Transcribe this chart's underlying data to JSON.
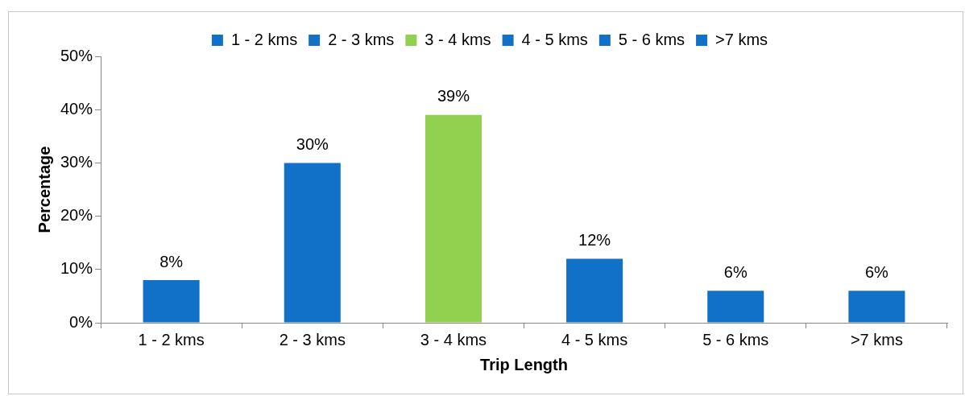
{
  "chart_data": {
    "type": "bar",
    "xlabel": "Trip Length",
    "ylabel": "Percentage",
    "categories": [
      "1 - 2 kms",
      "2 - 3 kms",
      "3 - 4 kms",
      "4 - 5 kms",
      "5 - 6 kms",
      ">7 kms"
    ],
    "series": [
      {
        "name": "1 - 2 kms",
        "color": "#1170c8",
        "values": [
          8,
          null,
          null,
          null,
          null,
          null
        ],
        "value_labels": [
          "8%",
          null,
          null,
          null,
          null,
          null
        ]
      },
      {
        "name": "2 - 3 kms",
        "color": "#1170c8",
        "values": [
          null,
          30,
          null,
          null,
          null,
          null
        ],
        "value_labels": [
          null,
          "30%",
          null,
          null,
          null,
          null
        ]
      },
      {
        "name": "3 - 4 kms",
        "color": "#92d050",
        "values": [
          null,
          null,
          39,
          null,
          null,
          null
        ],
        "value_labels": [
          null,
          null,
          "39%",
          null,
          null,
          null
        ]
      },
      {
        "name": "4 - 5 kms",
        "color": "#1170c8",
        "values": [
          null,
          null,
          null,
          12,
          null,
          null
        ],
        "value_labels": [
          null,
          null,
          null,
          "12%",
          null,
          null
        ]
      },
      {
        "name": "5 - 6 kms",
        "color": "#1170c8",
        "values": [
          null,
          null,
          null,
          null,
          6,
          null
        ],
        "value_labels": [
          null,
          null,
          null,
          null,
          "6%",
          null
        ]
      },
      {
        "name": ">7 kms",
        "color": "#1170c8",
        "values": [
          null,
          null,
          null,
          null,
          null,
          6
        ],
        "value_labels": [
          null,
          null,
          null,
          null,
          null,
          "6%"
        ]
      }
    ],
    "ylim": [
      0,
      50
    ],
    "yticks": [
      {
        "value": 0,
        "label": "0%"
      },
      {
        "value": 10,
        "label": "10%"
      },
      {
        "value": 20,
        "label": "20%"
      },
      {
        "value": 30,
        "label": "30%"
      },
      {
        "value": 40,
        "label": "40%"
      },
      {
        "value": 50,
        "label": "50%"
      }
    ],
    "grid": false,
    "legend": "top"
  }
}
